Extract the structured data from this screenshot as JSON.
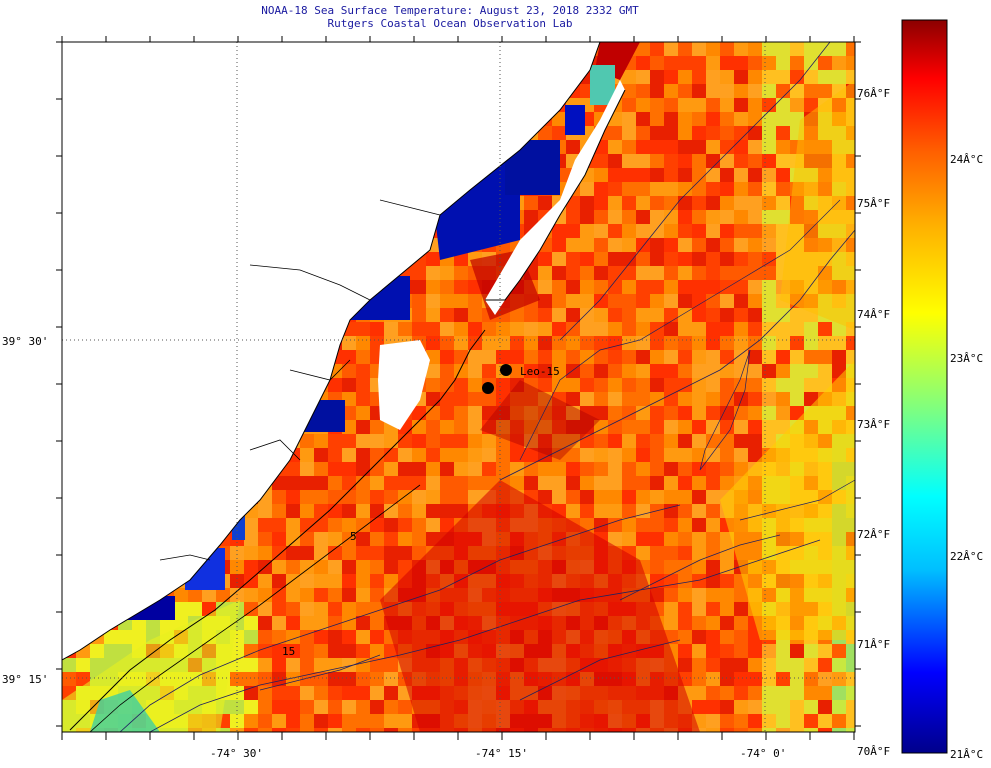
{
  "title": "NOAA-18 Sea Surface Temperature:  August 23, 2018 2332 GMT",
  "subtitle": "Rutgers Coastal Ocean Observation Lab",
  "map": {
    "lon_labels": [
      "-74° 30'",
      "-74° 15'",
      "-74° 0'"
    ],
    "lat_labels": [
      "39° 30'",
      "39° 15'"
    ],
    "station_label": "Leo-15",
    "contour_labels": [
      "5",
      "15"
    ]
  },
  "colorbar": {
    "celsius_labels": [
      "24Â°C",
      "23Â°C",
      "22Â°C",
      "21Â°C"
    ],
    "fahrenheit_labels": [
      "76Â°F",
      "75Â°F",
      "74Â°F",
      "73Â°F",
      "72Â°F",
      "71Â°F",
      "70Â°F"
    ],
    "colors": [
      "#00008b",
      "#0000ff",
      "#00bfff",
      "#00ffff",
      "#7fff7f",
      "#ffff00",
      "#ffb000",
      "#ff6000",
      "#ff0000",
      "#8b0000"
    ]
  }
}
